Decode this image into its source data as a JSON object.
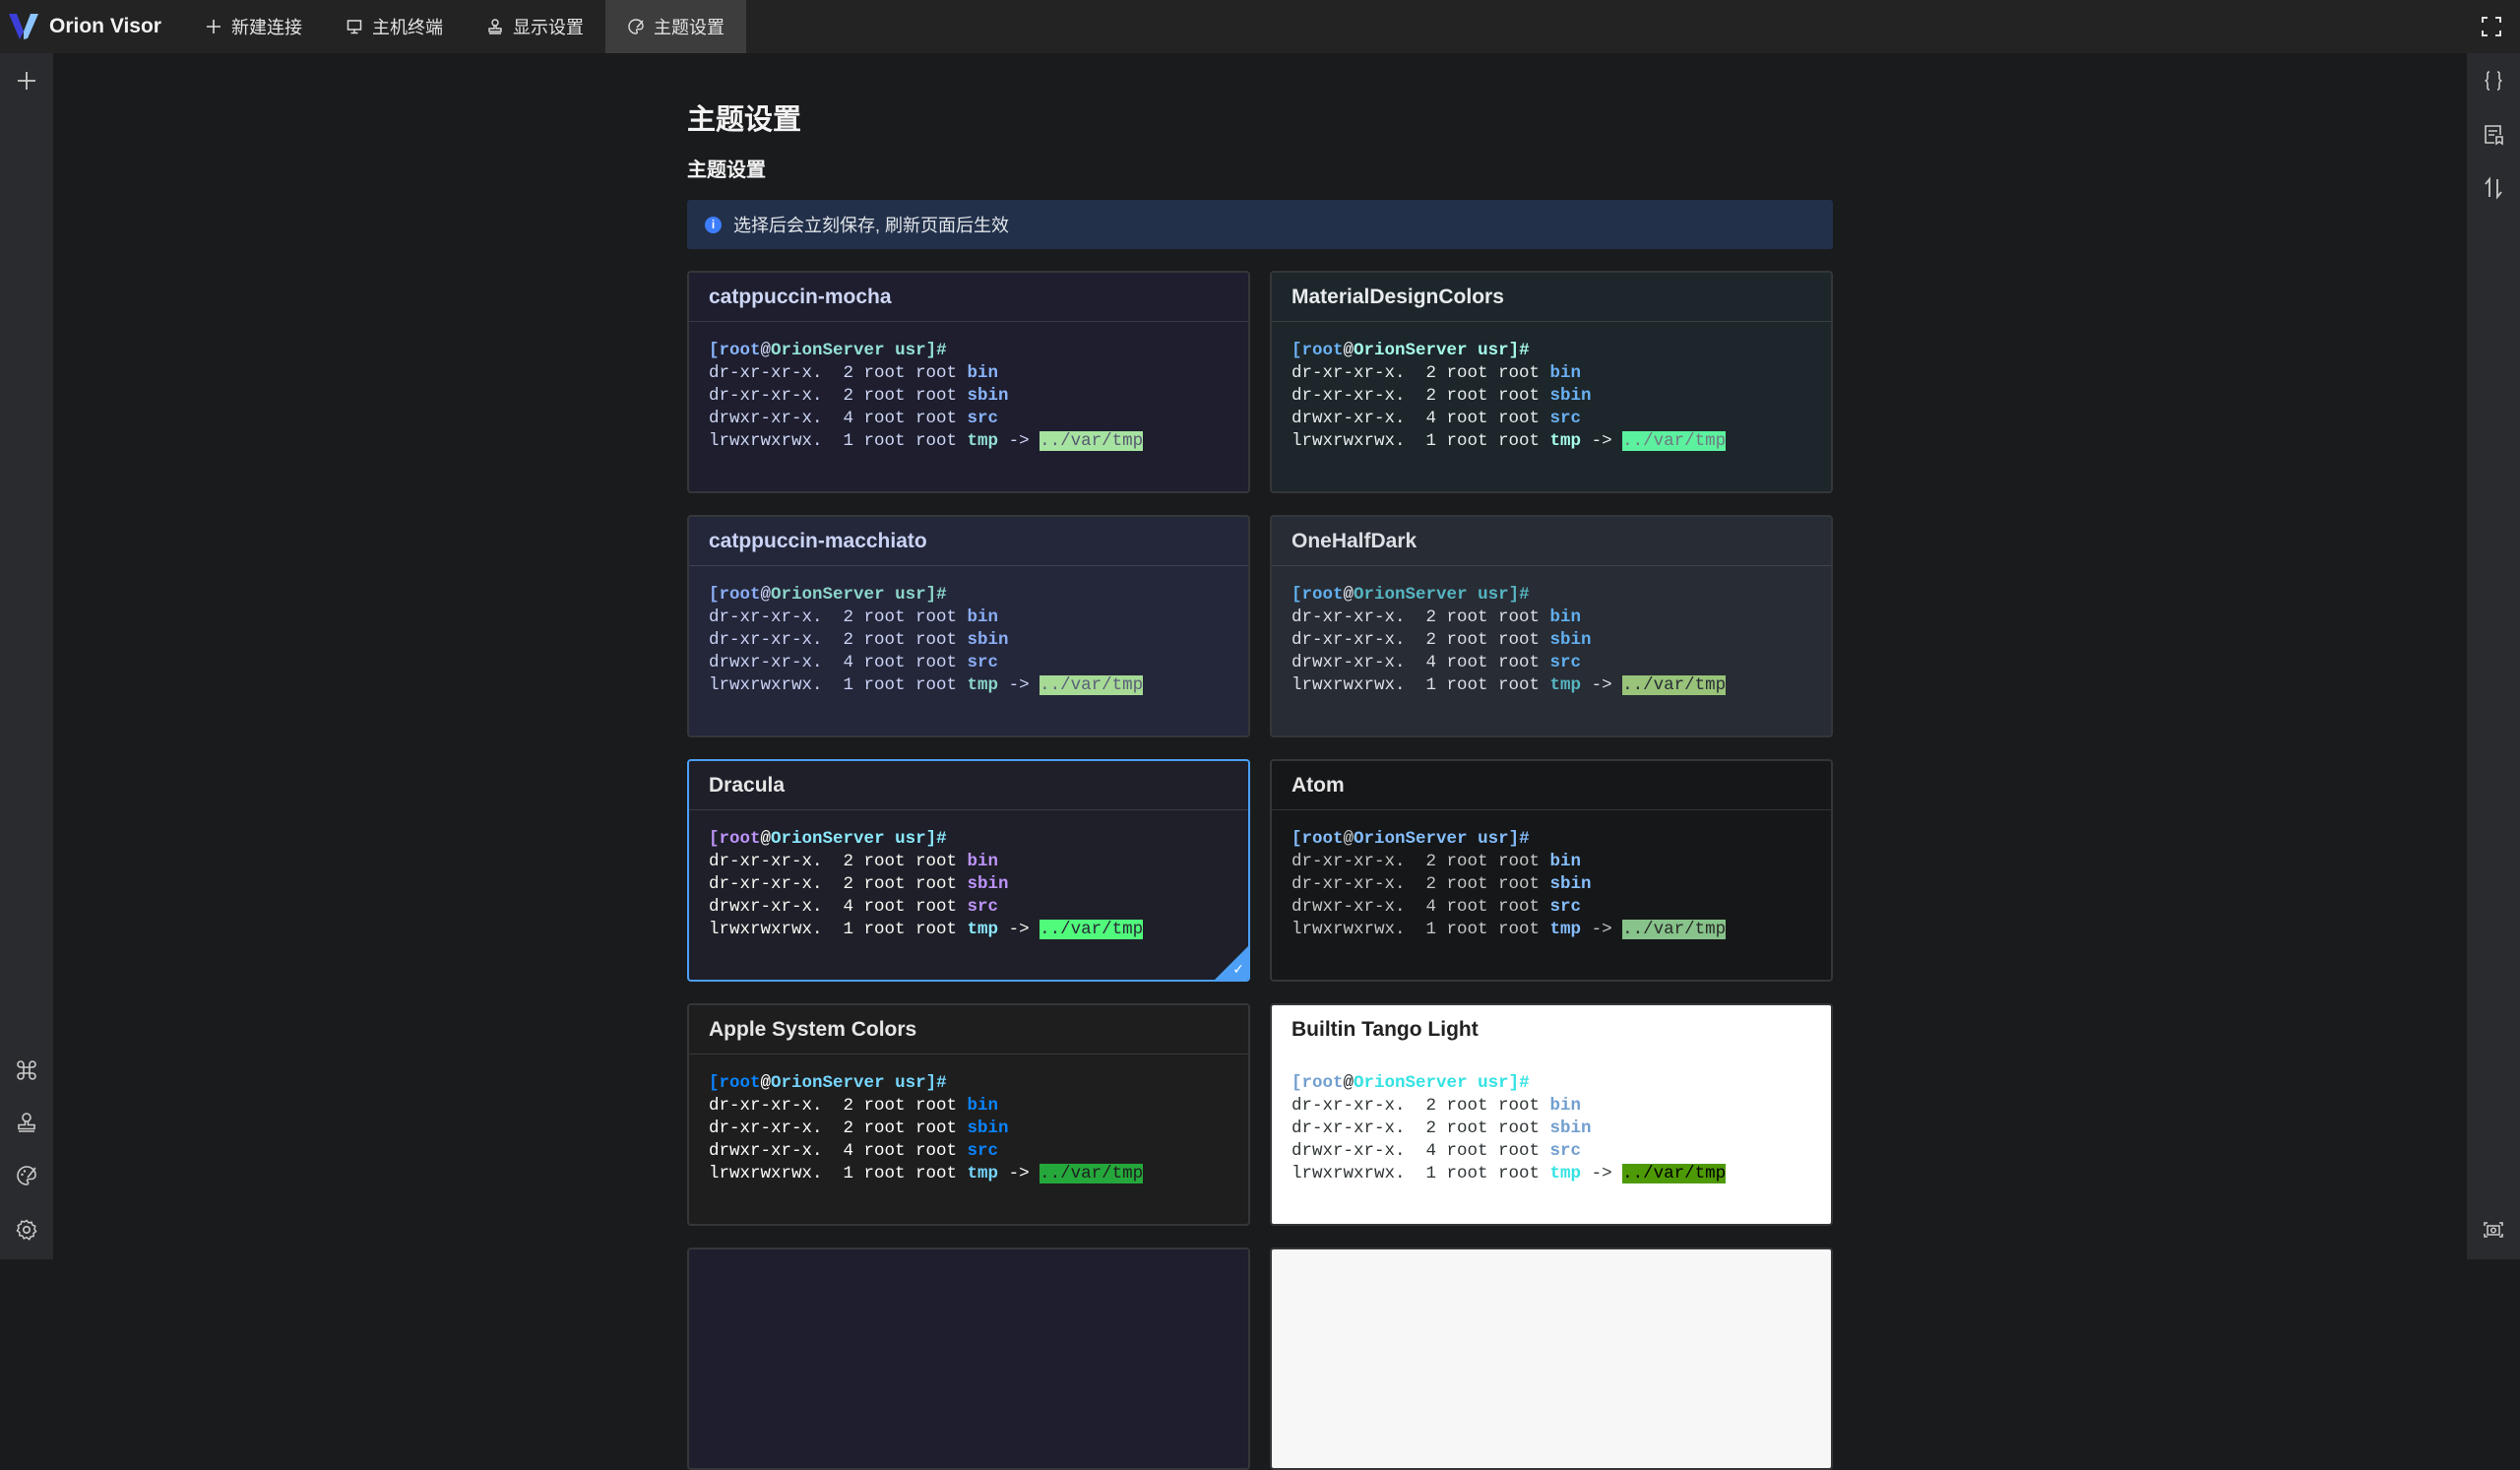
{
  "app": {
    "name": "Orion Visor"
  },
  "topbar": {
    "tabs": [
      {
        "label": "新建连接",
        "icon": "plus-icon"
      },
      {
        "label": "主机终端",
        "icon": "monitor-icon"
      },
      {
        "label": "显示设置",
        "icon": "stamp-icon"
      },
      {
        "label": "主题设置",
        "icon": "palette-icon",
        "active": true
      }
    ]
  },
  "page": {
    "title": "主题设置",
    "section": "主题设置",
    "alert": "选择后会立刻保存, 刷新页面后生效"
  },
  "terminal": {
    "bracket_open": "[",
    "user": "root",
    "at": "@",
    "host": "OrionServer usr",
    "prompt_end": "]#",
    "lines": [
      {
        "perm": "dr-xr-xr-x.  2 root root ",
        "name": "bin"
      },
      {
        "perm": "dr-xr-xr-x.  2 root root ",
        "name": "sbin"
      },
      {
        "perm": "drwxr-xr-x.  4 root root ",
        "name": "src"
      }
    ],
    "link_perm": "lrwxrwxrwx.  1 root root ",
    "link_name": "tmp",
    "arrow": " -> ",
    "link_target": "../var/tmp"
  },
  "themes": [
    {
      "name": "catppuccin-mocha",
      "bg": "#1e1e2e",
      "fg": "#cdd6f4",
      "user": "#89b4fa",
      "host": "#94e2d5",
      "dir": "#89b4fa",
      "link": "#94e2d5",
      "link_bg": "#a6e3a1",
      "link_fg": "#585b70",
      "title": "#cdd6f4"
    },
    {
      "name": "MaterialDesignColors",
      "bg": "#1d262a",
      "fg": "#e7ebed",
      "user": "#6ab0f3",
      "host": "#a7fdeb",
      "dir": "#6ab0f3",
      "link": "#a7fdeb",
      "link_bg": "#5cf19e",
      "link_fg": "#707880",
      "title": "#e7ebed"
    },
    {
      "name": "catppuccin-macchiato",
      "bg": "#24273a",
      "fg": "#cad3f5",
      "user": "#8aadf4",
      "host": "#8bd5ca",
      "dir": "#8aadf4",
      "link": "#8bd5ca",
      "link_bg": "#a6da95",
      "link_fg": "#5b6078",
      "title": "#cad3f5"
    },
    {
      "name": "OneHalfDark",
      "bg": "#282c34",
      "fg": "#dcdfe4",
      "user": "#61afef",
      "host": "#56b6c2",
      "dir": "#61afef",
      "link": "#56b6c2",
      "link_bg": "#98c379",
      "link_fg": "#282c34",
      "title": "#dcdfe4"
    },
    {
      "name": "Dracula",
      "bg": "#1e1f29",
      "fg": "#f8f8f2",
      "user": "#bd93f9",
      "host": "#8be9fd",
      "dir": "#bd93f9",
      "link": "#8be9fd",
      "link_bg": "#50fa7b",
      "link_fg": "#282a36",
      "title": "#e6e6e6",
      "selected": true
    },
    {
      "name": "Atom",
      "bg": "#161719",
      "fg": "#c5c8c6",
      "user": "#85befd",
      "host": "#85befd",
      "dir": "#85befd",
      "link": "#85befd",
      "link_bg": "#87c38a",
      "link_fg": "#292929",
      "title": "#e6e6e6"
    },
    {
      "name": "Apple System Colors",
      "bg": "#1e1e1e",
      "fg": "#ffffff",
      "user": "#0a84ff",
      "host": "#76d6ff",
      "dir": "#0a84ff",
      "link": "#76d6ff",
      "link_bg": "#25a83b",
      "link_fg": "#1e1e1e",
      "title": "#e6e6e6"
    },
    {
      "name": "Builtin Tango Light",
      "bg": "#ffffff",
      "fg": "#2e3436",
      "user": "#729fcf",
      "host": "#34e2e2",
      "dir": "#729fcf",
      "link": "#34e2e2",
      "link_bg": "#4e9a06",
      "link_fg": "#000000",
      "title": "#222222",
      "light": true
    }
  ],
  "partial_cards": [
    {
      "bg": "#1e1e2e"
    },
    {
      "bg": "#f7f7f7"
    }
  ],
  "colors": {
    "accent": "#4c9ff5",
    "topbar": "#232323",
    "sidebar": "#2a2b2f",
    "page": "#1a1b1d",
    "alert_bg": "#22304a"
  }
}
